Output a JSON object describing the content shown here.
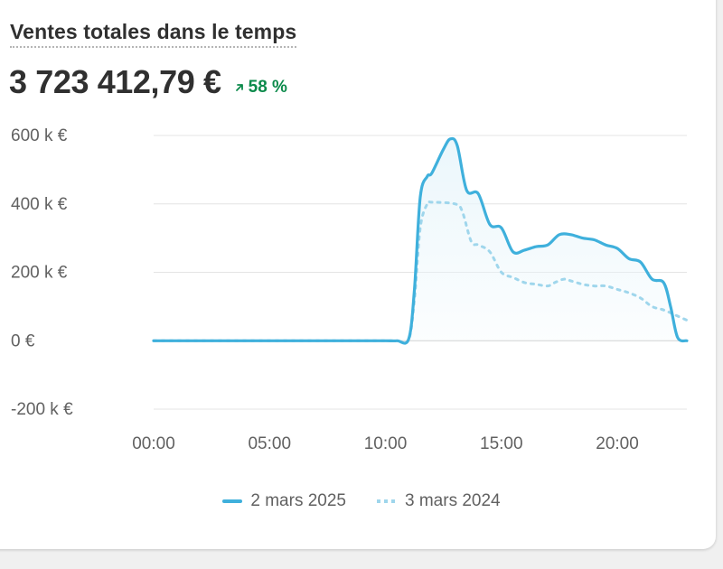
{
  "card": {
    "title": "Ventes totales dans le temps",
    "total": "3 723 412,79 €",
    "delta": "58 %",
    "delta_icon": "arrow-up-right-icon",
    "delta_color": "#0c8a4b"
  },
  "colors": {
    "primary": "#3fb0dc",
    "comparison": "#9fd6ec",
    "fill": "#eaf6fb",
    "grid": "#e4e4e4",
    "zero": "#d0d0d0"
  },
  "chart_data": {
    "type": "line",
    "ylim": [
      -200000,
      600000
    ],
    "xlim": [
      0,
      23
    ],
    "y_ticks": [
      {
        "value": 600000,
        "label": "600 k €"
      },
      {
        "value": 400000,
        "label": "400 k €"
      },
      {
        "value": 200000,
        "label": "200 k €"
      },
      {
        "value": 0,
        "label": "0 €"
      },
      {
        "value": -200000,
        "label": "-200 k €"
      }
    ],
    "x_ticks": [
      {
        "value": 0,
        "label": "00:00"
      },
      {
        "value": 5,
        "label": "05:00"
      },
      {
        "value": 10,
        "label": "10:00"
      },
      {
        "value": 15,
        "label": "15:00"
      },
      {
        "value": 20,
        "label": "20:00"
      }
    ],
    "series": [
      {
        "name": "2 mars 2025",
        "style": "solid",
        "points": [
          [
            0,
            0
          ],
          [
            1,
            0
          ],
          [
            2,
            0
          ],
          [
            3,
            0
          ],
          [
            4,
            0
          ],
          [
            5,
            0
          ],
          [
            6,
            0
          ],
          [
            7,
            0
          ],
          [
            8,
            0
          ],
          [
            9,
            0
          ],
          [
            10,
            0
          ],
          [
            10.5,
            0
          ],
          [
            11,
            5000
          ],
          [
            11.25,
            150000
          ],
          [
            11.5,
            420000
          ],
          [
            11.8,
            480000
          ],
          [
            12,
            490000
          ],
          [
            12.5,
            560000
          ],
          [
            12.8,
            590000
          ],
          [
            13.1,
            570000
          ],
          [
            13.5,
            440000
          ],
          [
            14,
            430000
          ],
          [
            14.5,
            340000
          ],
          [
            15,
            330000
          ],
          [
            15.5,
            260000
          ],
          [
            16,
            265000
          ],
          [
            16.5,
            275000
          ],
          [
            17,
            280000
          ],
          [
            17.5,
            310000
          ],
          [
            18,
            310000
          ],
          [
            18.5,
            300000
          ],
          [
            19,
            295000
          ],
          [
            19.5,
            280000
          ],
          [
            20,
            270000
          ],
          [
            20.5,
            240000
          ],
          [
            21,
            230000
          ],
          [
            21.5,
            180000
          ],
          [
            22,
            170000
          ],
          [
            22.3,
            100000
          ],
          [
            22.6,
            10000
          ],
          [
            23,
            0
          ]
        ]
      },
      {
        "name": "3 mars 2024",
        "style": "dotted",
        "points": [
          [
            0,
            0
          ],
          [
            1,
            0
          ],
          [
            2,
            0
          ],
          [
            3,
            0
          ],
          [
            4,
            0
          ],
          [
            5,
            0
          ],
          [
            6,
            0
          ],
          [
            7,
            0
          ],
          [
            8,
            0
          ],
          [
            9,
            0
          ],
          [
            10,
            0
          ],
          [
            10.5,
            0
          ],
          [
            11,
            3000
          ],
          [
            11.25,
            120000
          ],
          [
            11.5,
            330000
          ],
          [
            11.8,
            400000
          ],
          [
            12,
            405000
          ],
          [
            13,
            400000
          ],
          [
            13.3,
            380000
          ],
          [
            13.7,
            290000
          ],
          [
            14,
            280000
          ],
          [
            14.5,
            260000
          ],
          [
            15,
            200000
          ],
          [
            15.5,
            185000
          ],
          [
            16,
            170000
          ],
          [
            16.5,
            165000
          ],
          [
            17,
            160000
          ],
          [
            17.3,
            170000
          ],
          [
            17.7,
            180000
          ],
          [
            18,
            175000
          ],
          [
            18.5,
            165000
          ],
          [
            19,
            160000
          ],
          [
            19.5,
            160000
          ],
          [
            20,
            150000
          ],
          [
            20.5,
            140000
          ],
          [
            21,
            125000
          ],
          [
            21.5,
            100000
          ],
          [
            22,
            90000
          ],
          [
            22.5,
            75000
          ],
          [
            23,
            60000
          ]
        ]
      }
    ]
  }
}
